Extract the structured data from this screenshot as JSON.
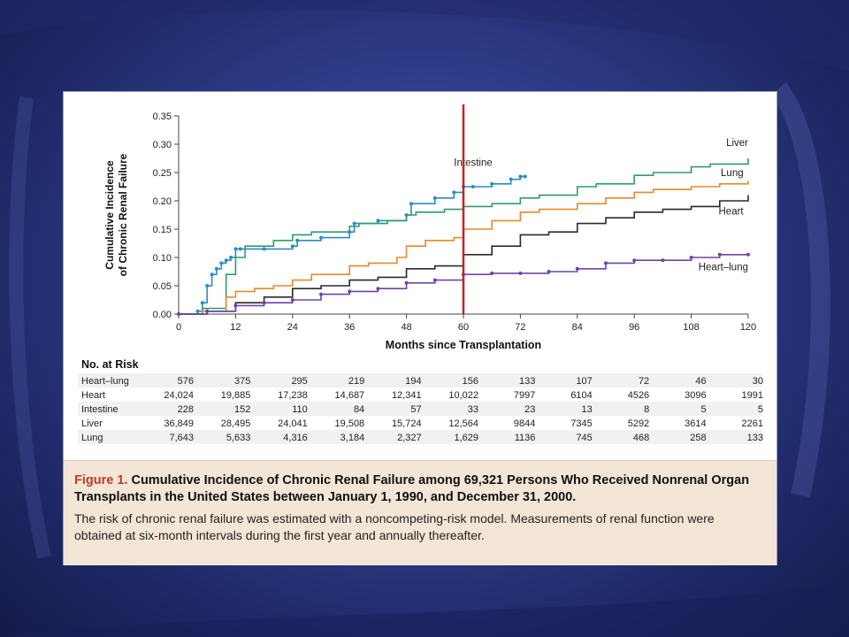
{
  "chart_data": {
    "type": "line",
    "ylabel": "Cumulative Incidence\nof Chronic Renal Failure",
    "xlabel": "Months since Transplantation",
    "x_ticks": [
      0,
      12,
      24,
      36,
      48,
      60,
      72,
      84,
      96,
      108,
      120
    ],
    "y_ticks": [
      0.0,
      0.05,
      0.1,
      0.15,
      0.2,
      0.25,
      0.3,
      0.35
    ],
    "y_tick_labels": [
      "0.00",
      "0.05",
      "0.10",
      "0.15",
      "0.20",
      "0.25",
      "0.30",
      "0.35"
    ],
    "xlim": [
      0,
      120
    ],
    "ylim": [
      0,
      0.35
    ],
    "grid": false,
    "marker_line_x": 60,
    "marker_line_color": "#cc1f1f",
    "series": [
      {
        "name": "Intestine",
        "color": "#2b8cc4",
        "markers": true,
        "x": [
          0,
          4,
          5,
          6,
          7,
          8,
          9,
          10,
          11,
          12,
          13,
          18,
          24,
          25,
          30,
          36,
          37,
          42,
          48,
          49,
          54,
          58,
          60,
          62,
          66,
          70,
          72,
          73
        ],
        "y": [
          0,
          0.005,
          0.02,
          0.05,
          0.07,
          0.08,
          0.09,
          0.095,
          0.1,
          0.115,
          0.115,
          0.115,
          0.12,
          0.13,
          0.135,
          0.145,
          0.16,
          0.165,
          0.175,
          0.195,
          0.205,
          0.215,
          0.225,
          0.225,
          0.23,
          0.238,
          0.243,
          0.243
        ]
      },
      {
        "name": "Liver",
        "color": "#2e9e6a",
        "markers": false,
        "x": [
          0,
          5,
          10,
          12,
          14,
          20,
          24,
          28,
          36,
          38,
          44,
          48,
          50,
          56,
          60,
          66,
          72,
          76,
          84,
          88,
          96,
          100,
          108,
          112,
          120
        ],
        "y": [
          0,
          0.01,
          0.07,
          0.1,
          0.12,
          0.13,
          0.14,
          0.145,
          0.155,
          0.16,
          0.165,
          0.175,
          0.18,
          0.185,
          0.19,
          0.195,
          0.205,
          0.21,
          0.225,
          0.23,
          0.245,
          0.25,
          0.26,
          0.265,
          0.275
        ]
      },
      {
        "name": "Lung",
        "color": "#e8892b",
        "markers": false,
        "x": [
          0,
          5,
          10,
          12,
          16,
          20,
          24,
          28,
          36,
          40,
          46,
          48,
          52,
          58,
          60,
          66,
          72,
          76,
          84,
          90,
          96,
          100,
          108,
          114,
          120
        ],
        "y": [
          0,
          0.005,
          0.03,
          0.04,
          0.045,
          0.05,
          0.06,
          0.07,
          0.085,
          0.09,
          0.1,
          0.12,
          0.13,
          0.135,
          0.15,
          0.165,
          0.18,
          0.185,
          0.195,
          0.205,
          0.215,
          0.22,
          0.225,
          0.23,
          0.235
        ]
      },
      {
        "name": "Heart",
        "color": "#2a2a2a",
        "markers": false,
        "x": [
          0,
          6,
          12,
          18,
          24,
          30,
          36,
          42,
          48,
          54,
          60,
          66,
          72,
          78,
          84,
          90,
          96,
          102,
          108,
          114,
          120
        ],
        "y": [
          0,
          0.005,
          0.02,
          0.03,
          0.045,
          0.05,
          0.06,
          0.065,
          0.08,
          0.085,
          0.105,
          0.12,
          0.14,
          0.145,
          0.16,
          0.17,
          0.18,
          0.185,
          0.19,
          0.2,
          0.21
        ]
      },
      {
        "name": "Heart–lung",
        "color": "#6b46a8",
        "markers": true,
        "x": [
          0,
          6,
          12,
          18,
          24,
          30,
          36,
          42,
          48,
          54,
          60,
          66,
          72,
          78,
          84,
          90,
          96,
          102,
          108,
          114,
          120
        ],
        "y": [
          0,
          0.005,
          0.015,
          0.02,
          0.025,
          0.035,
          0.04,
          0.045,
          0.055,
          0.06,
          0.07,
          0.072,
          0.072,
          0.075,
          0.08,
          0.09,
          0.095,
          0.095,
          0.1,
          0.105,
          0.105
        ]
      }
    ],
    "risk_table": {
      "title": "No. at Risk",
      "columns": [
        0,
        12,
        24,
        36,
        48,
        60,
        72,
        84,
        96,
        108,
        120
      ],
      "rows": [
        {
          "label": "Heart–lung",
          "values": [
            "576",
            "375",
            "295",
            "219",
            "194",
            "156",
            "133",
            "107",
            "72",
            "46",
            "30"
          ]
        },
        {
          "label": "Heart",
          "values": [
            "24,024",
            "19,885",
            "17,238",
            "14,687",
            "12,341",
            "10,022",
            "7997",
            "6104",
            "4526",
            "3096",
            "1991"
          ]
        },
        {
          "label": "Intestine",
          "values": [
            "228",
            "152",
            "110",
            "84",
            "57",
            "33",
            "23",
            "13",
            "8",
            "5",
            "5"
          ]
        },
        {
          "label": "Liver",
          "values": [
            "36,849",
            "28,495",
            "24,041",
            "19,508",
            "15,724",
            "12,564",
            "9844",
            "7345",
            "5292",
            "3614",
            "2261"
          ]
        },
        {
          "label": "Lung",
          "values": [
            "7,643",
            "5,633",
            "4,316",
            "3,184",
            "2,327",
            "1,629",
            "1136",
            "745",
            "468",
            "258",
            "133"
          ]
        }
      ]
    }
  },
  "caption": {
    "figure_label": "Figure 1.",
    "title": "Cumulative Incidence of Chronic Renal Failure among 69,321 Persons Who Received Nonrenal Organ Transplants in the United States between January 1, 1990, and December 31, 2000.",
    "body": "The risk of chronic renal failure was estimated with a noncompeting-risk model. Measurements of renal function were obtained at six-month intervals during the first year and annually thereafter."
  }
}
